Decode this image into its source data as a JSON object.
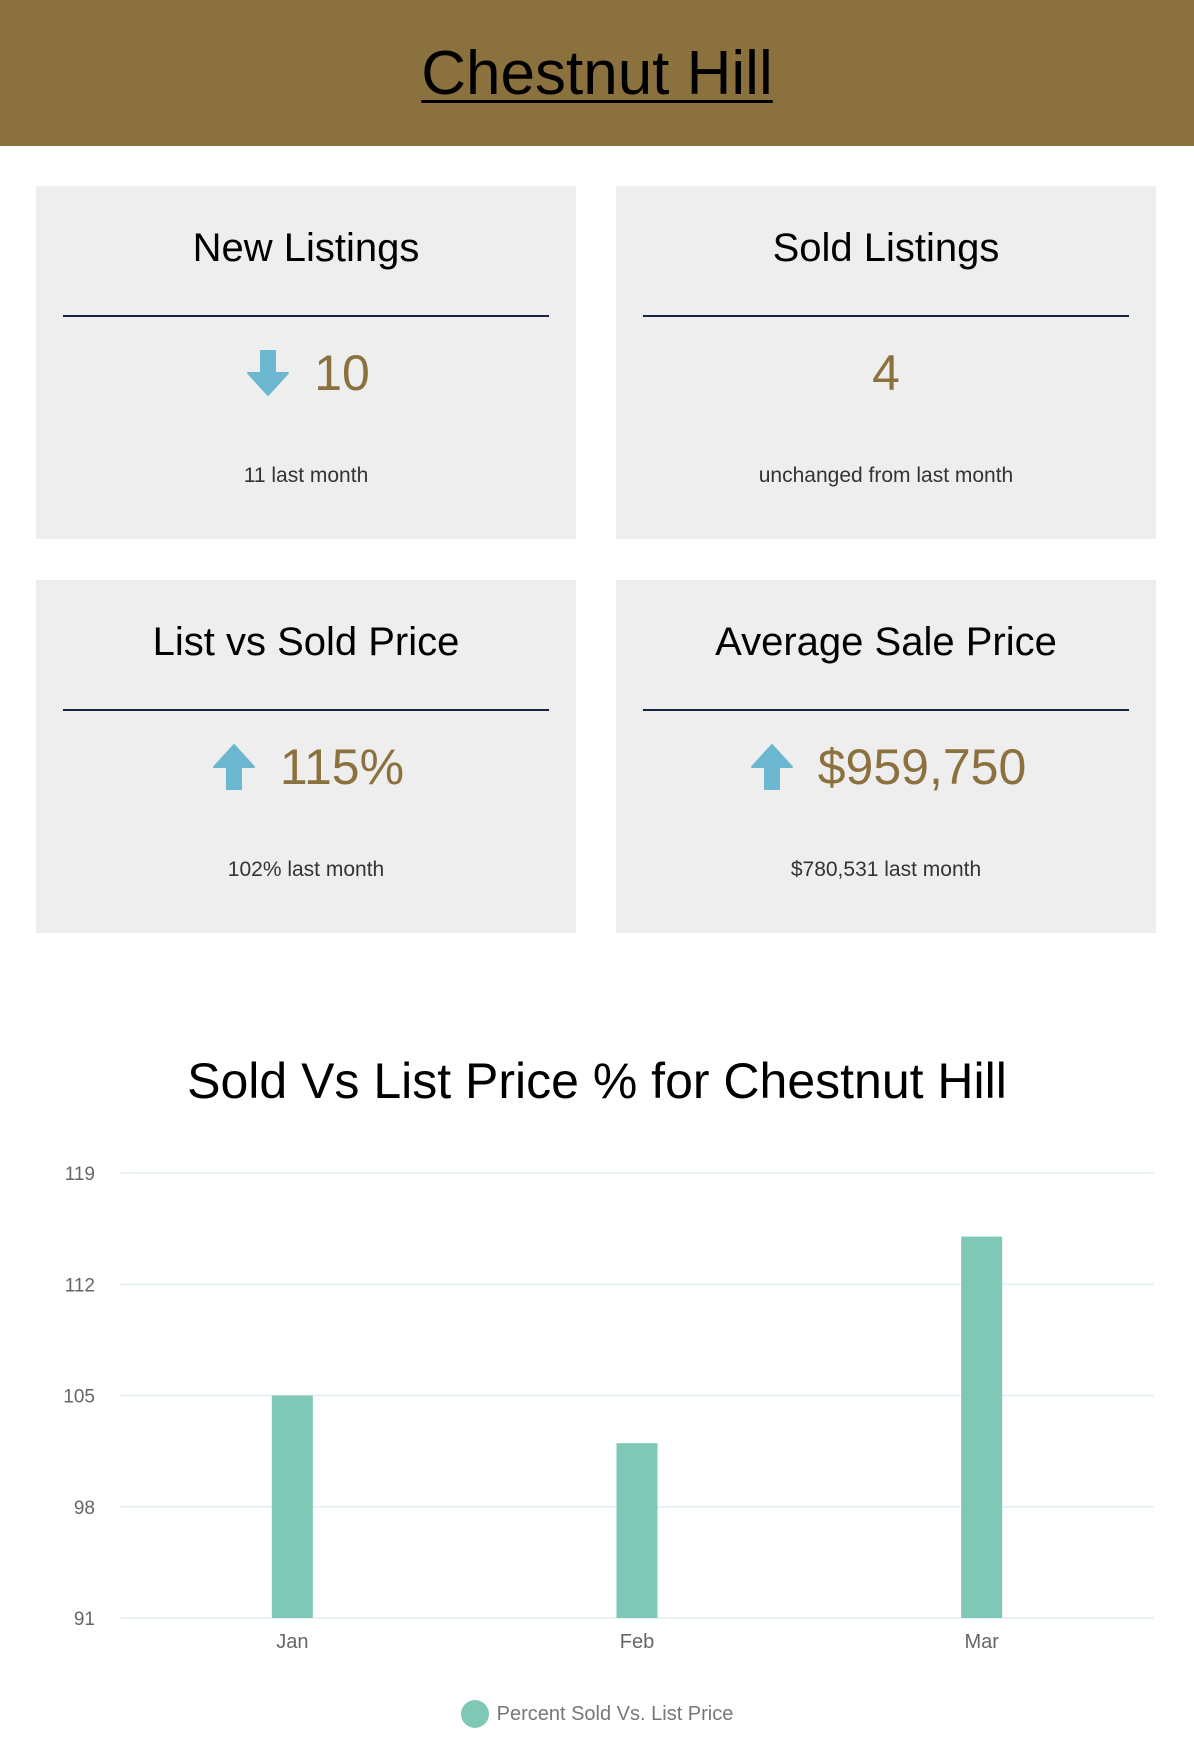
{
  "header": {
    "title": "Chestnut Hill"
  },
  "cards": {
    "new_listings": {
      "title": "New Listings",
      "value": "10",
      "sub": "11 last month",
      "trend": "down"
    },
    "sold_listings": {
      "title": "Sold Listings",
      "value": "4",
      "sub": "unchanged from last month",
      "trend": "none"
    },
    "list_vs_sold": {
      "title": "List vs Sold Price",
      "value": "115%",
      "sub": "102% last month",
      "trend": "up"
    },
    "avg_sale_price": {
      "title": "Average Sale Price",
      "value": "$959,750",
      "sub": "$780,531 last month",
      "trend": "up"
    }
  },
  "colors": {
    "header_bg": "#8b713e",
    "value_text": "#8b713e",
    "arrow": "#6bb7cf",
    "card_bg": "#eeeeee",
    "bar": "#80c8b6"
  },
  "chart_data": {
    "type": "bar",
    "title": "Sold Vs List Price % for Chestnut Hill",
    "categories": [
      "Jan",
      "Feb",
      "Mar"
    ],
    "series": [
      {
        "name": "Percent Sold Vs. List Price",
        "values": [
          105,
          102,
          115
        ]
      }
    ],
    "ylim": [
      91,
      119
    ],
    "yticks": [
      "119",
      "112",
      "105",
      "98",
      "91"
    ],
    "grid": true,
    "legend": "bottom"
  }
}
